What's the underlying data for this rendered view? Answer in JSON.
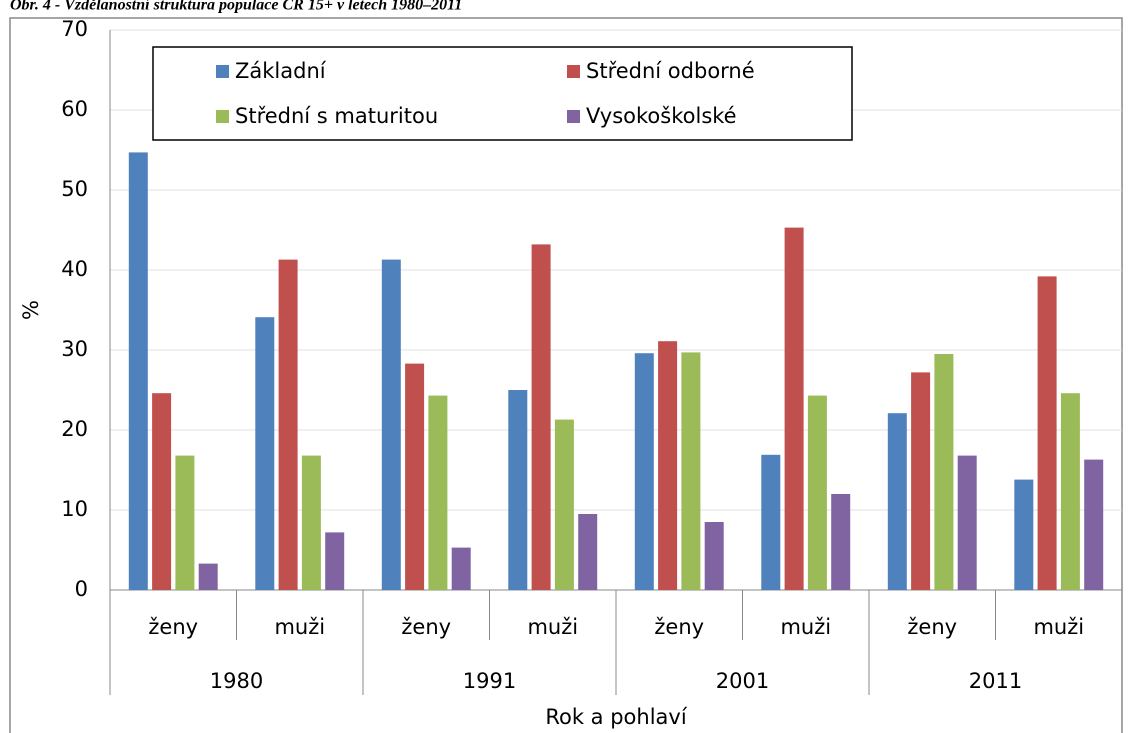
{
  "chart_data": {
    "type": "bar",
    "title": "Obr. 4 - Vzdělanostní struktura populace ČR 15+ v letech 1980–2011",
    "y_label": "%",
    "x_label": "Rok a pohlaví",
    "categories": [
      "ženy",
      "muži",
      "ženy",
      "muži",
      "ženy",
      "muži",
      "ženy",
      "muži"
    ],
    "category_groups": [
      "1980",
      "1991",
      "2001",
      "2011"
    ],
    "series": [
      {
        "name": "Základní",
        "color": "#4f81bd",
        "values": [
          54.7,
          34.1,
          41.3,
          25.0,
          29.6,
          16.9,
          22.1,
          13.8
        ]
      },
      {
        "name": "Střední odborné",
        "color": "#c0504d",
        "values": [
          24.6,
          41.3,
          28.3,
          43.2,
          31.1,
          45.3,
          27.2,
          39.2
        ]
      },
      {
        "name": "Střední s maturitou",
        "color": "#9bbb59",
        "values": [
          16.8,
          16.8,
          24.3,
          21.3,
          29.7,
          24.3,
          29.5,
          24.6
        ]
      },
      {
        "name": "Vysokoškolské",
        "color": "#8064a2",
        "values": [
          3.3,
          7.2,
          5.3,
          9.5,
          8.5,
          12.0,
          16.8,
          16.3
        ]
      }
    ],
    "ylim": [
      0,
      70
    ],
    "yticks": [
      0,
      10,
      20,
      30,
      40,
      50,
      60,
      70
    ],
    "grid": true
  }
}
